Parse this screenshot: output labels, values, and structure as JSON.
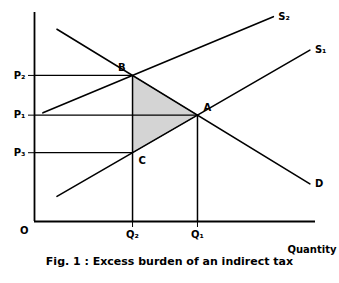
{
  "chart_data": {
    "type": "line",
    "caption": "Fig. 1 : Excess burden of an indirect tax",
    "xlabel": "Quantity",
    "xlim": [
      0,
      10
    ],
    "ylim": [
      0,
      10
    ],
    "xticks": [
      {
        "value": 3.48907,
        "label": "Q₂"
      },
      {
        "value": 5.8,
        "label": "Q₁"
      }
    ],
    "yticks": [
      {
        "value": 6.98899,
        "label": "P₂"
      },
      {
        "value": 5.08889,
        "label": "P₁"
      },
      {
        "value": 3.2915,
        "label": "P₃"
      }
    ],
    "series": [
      {
        "name": "S₁",
        "x": [
          0.8,
          9.8
        ],
        "values": [
          1.2,
          8.2
        ]
      },
      {
        "name": "S₂",
        "x": [
          0.3,
          8.5
        ],
        "values": [
          5.2,
          9.8
        ]
      },
      {
        "name": "D",
        "x": [
          0.8,
          9.8
        ],
        "values": [
          9.2,
          1.8
        ]
      }
    ],
    "annotations": [
      {
        "text": "B",
        "x": 3.48907,
        "y": 6.98899
      },
      {
        "text": "A",
        "x": 5.8,
        "y": 5.08889
      },
      {
        "text": "C",
        "x": 3.48907,
        "y": 3.2915
      }
    ],
    "shaded": {
      "points": [
        "B",
        "A",
        "C"
      ],
      "color": "#b0b0b0"
    },
    "origin_label": "O",
    "grid": false
  }
}
